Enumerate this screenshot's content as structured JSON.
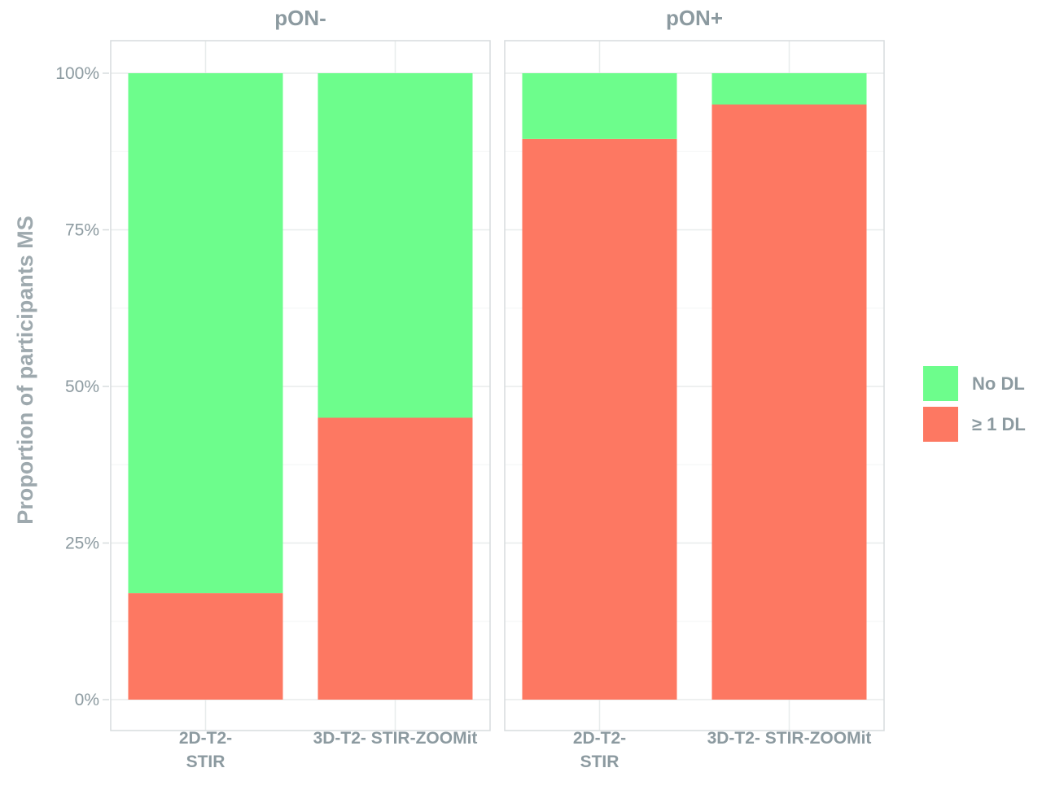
{
  "chart_data": {
    "type": "bar",
    "stacked": true,
    "ylabel": "Proportion of participants MS",
    "yticks": [
      "0%",
      "25%",
      "50%",
      "75%",
      "100%"
    ],
    "ylim": [
      0,
      100
    ],
    "grid": true,
    "legend_position": "right",
    "categories": [
      "2D-T2- STIR",
      "3D-T2- STIR-ZOOMit"
    ],
    "category_labels": [
      [
        "2D-T2-",
        "STIR"
      ],
      [
        "3D-T2- STIR-ZOOMit"
      ]
    ],
    "series": [
      {
        "name": "No DL",
        "color": "#6dfd8c"
      },
      {
        "name": "≥ 1  DL",
        "color": "#fd7862"
      }
    ],
    "facets": [
      {
        "title": "pON-",
        "values": {
          "No DL": [
            83,
            55
          ],
          "≥ 1  DL": [
            17,
            45
          ]
        }
      },
      {
        "title": "pON+",
        "values": {
          "No DL": [
            10.5,
            5
          ],
          "≥ 1  DL": [
            89.5,
            95
          ]
        }
      }
    ]
  }
}
